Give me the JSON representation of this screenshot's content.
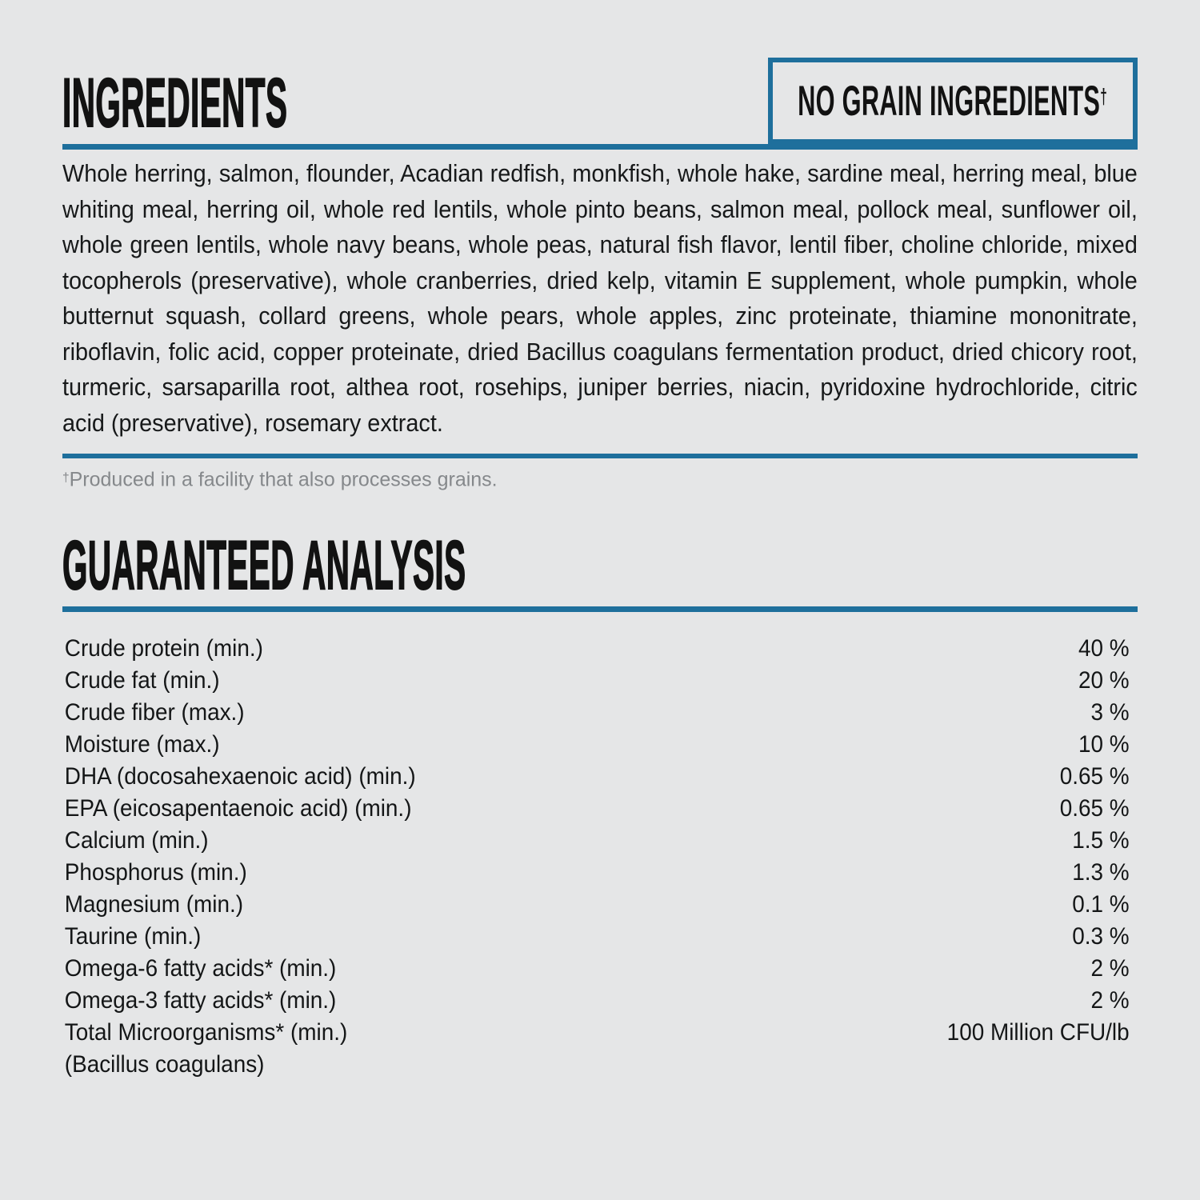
{
  "page": {
    "background": "#e5e6e7",
    "accent": "#1e6f9c",
    "text_color": "#17191a",
    "muted_color": "#85888b"
  },
  "ingredients": {
    "title": "INGREDIENTS",
    "badge_label": "NO GRAIN INGREDIENTS",
    "badge_mark": "†",
    "list": "Whole herring, salmon, flounder, Acadian redfish, monkfish, whole hake, sardine meal, herring meal, blue whiting meal, herring oil, whole red lentils, whole pinto beans, salmon meal, pollock meal, sunflower oil, whole green lentils, whole navy beans, whole peas, natural fish flavor, lentil fiber, choline chloride, mixed tocopherols (preservative), whole cranberries, dried kelp, vitamin E supplement, whole pumpkin, whole butternut squash, collard greens, whole pears, whole apples, zinc proteinate, thiamine mononitrate, riboflavin, folic acid, copper proteinate, dried Bacillus coagulans fermentation product, dried chicory root, turmeric, sarsaparilla root, althea root, rosehips, juniper berries, niacin, pyridoxine hydrochloride, citric acid (preservative), rosemary extract.",
    "footnote_mark": "†",
    "footnote_text": "Produced in a facility that also processes grains."
  },
  "analysis": {
    "title": "GUARANTEED ANALYSIS",
    "rows": [
      {
        "label": "Crude protein (min.)",
        "value": "40 %"
      },
      {
        "label": "Crude fat (min.)",
        "value": "20 %"
      },
      {
        "label": "Crude fiber (max.)",
        "value": "3 %"
      },
      {
        "label": "Moisture (max.)",
        "value": "10 %"
      },
      {
        "label": "DHA (docosahexaenoic acid) (min.)",
        "value": "0.65 %"
      },
      {
        "label": "EPA (eicosapentaenoic acid) (min.)",
        "value": "0.65 %"
      },
      {
        "label": "Calcium (min.)",
        "value": "1.5 %"
      },
      {
        "label": "Phosphorus (min.)",
        "value": "1.3 %"
      },
      {
        "label": "Magnesium (min.)",
        "value": "0.1 %"
      },
      {
        "label": "Taurine (min.)",
        "value": "0.3 %"
      },
      {
        "label": "Omega-6 fatty acids* (min.)",
        "value": "2 %"
      },
      {
        "label": "Omega-3 fatty acids* (min.)",
        "value": "2 %"
      },
      {
        "label": "Total Microorganisms* (min.)",
        "value": "100 Million CFU/lb"
      },
      {
        "label": "(Bacillus coagulans)",
        "value": ""
      }
    ]
  }
}
